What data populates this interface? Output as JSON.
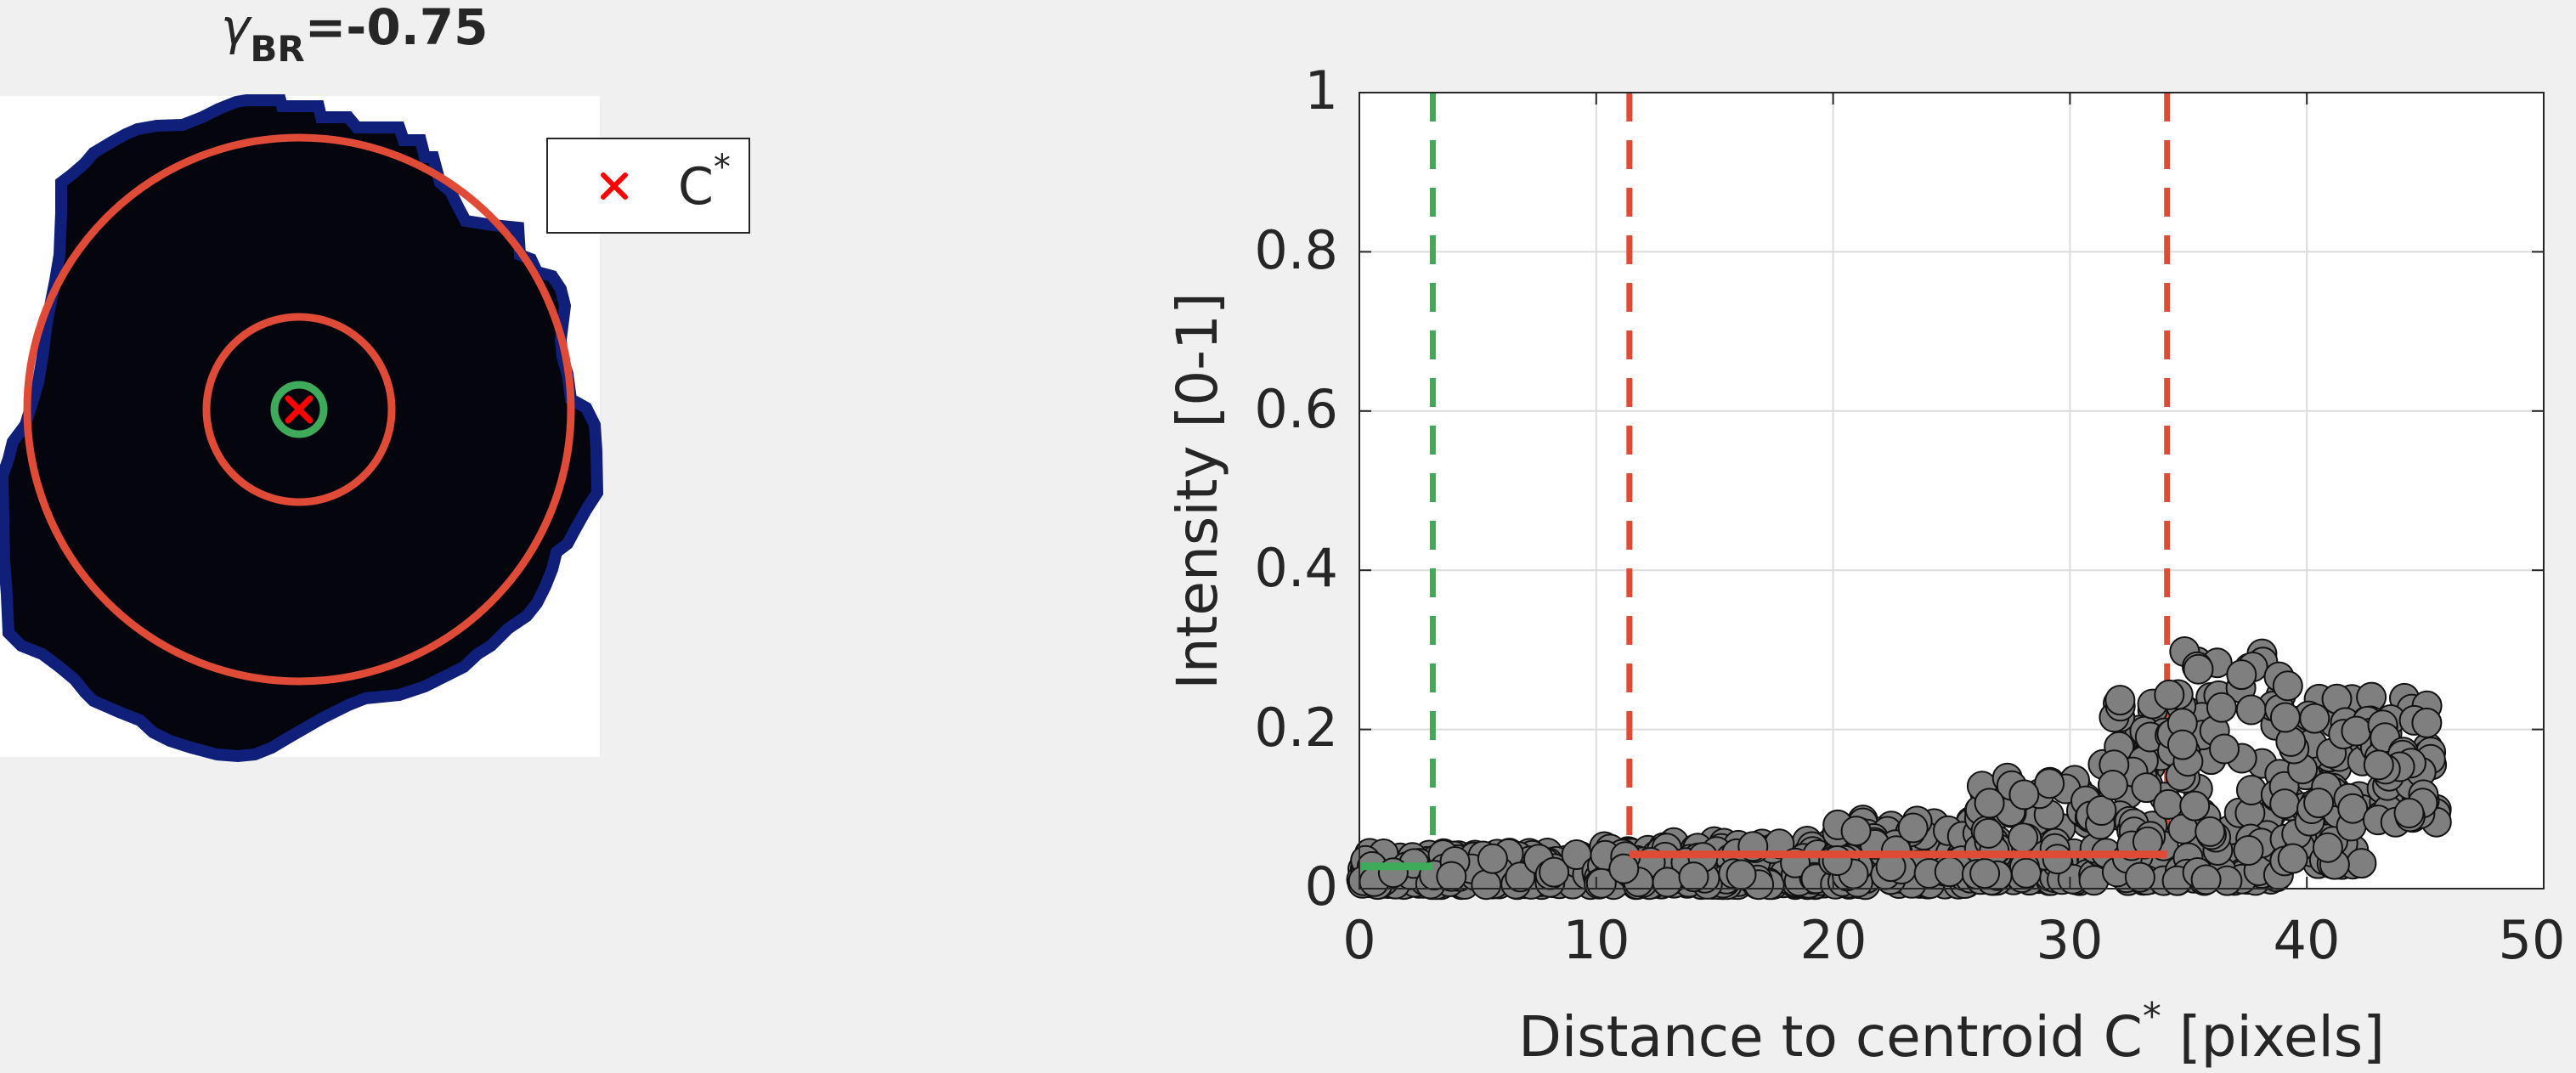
{
  "colors": {
    "background": "#f0f0f0",
    "red": "#e04b38",
    "green": "#3dab5a",
    "marker_red": "#ff0000",
    "point_fill": "#7f7f7f",
    "point_edge": "#111111",
    "cell_dark": "#05050d",
    "cell_edge": "#0f1f7a"
  },
  "left_panel": {
    "title_gamma": "γ",
    "title_sub": "BR",
    "title_value": "=-0.75",
    "legend_label": "C",
    "legend_sup": "*",
    "legend_marker_icon": "red-x-icon"
  },
  "chart_data": {
    "type": "scatter",
    "xlabel": "Distance to centroid C",
    "xlabel_sup": "*",
    "xlabel_suffix": " [pixels]",
    "ylabel": "Intensity [0-1]",
    "xlim": [
      0,
      50
    ],
    "ylim": [
      0,
      1
    ],
    "xticks": [
      0,
      10,
      20,
      30,
      40,
      50
    ],
    "yticks": [
      0,
      0.2,
      0.4,
      0.6,
      0.8,
      1
    ],
    "xtick_labels": [
      "0",
      "10",
      "20",
      "30",
      "40",
      "50"
    ],
    "ytick_labels": [
      "0",
      "0.2",
      "0.4",
      "0.6",
      "0.8",
      "1"
    ],
    "grid": true,
    "vlines": [
      {
        "x": 3.1,
        "color": "green",
        "style": "dashed"
      },
      {
        "x": 11.4,
        "color": "red",
        "style": "dashed"
      },
      {
        "x": 34.1,
        "color": "red",
        "style": "dashed"
      }
    ],
    "hsegments": [
      {
        "x0": 0,
        "x1": 3.1,
        "y": 0.028,
        "color": "green"
      },
      {
        "x0": 11.4,
        "x1": 34.1,
        "y": 0.043,
        "color": "red"
      }
    ],
    "scatter_envelope": [
      {
        "x0": 0,
        "x1": 10,
        "ymin": 0.005,
        "ymax": 0.045
      },
      {
        "x0": 10,
        "x1": 20,
        "ymin": 0.005,
        "ymax": 0.06
      },
      {
        "x0": 20,
        "x1": 26,
        "ymin": 0.005,
        "ymax": 0.09
      },
      {
        "x0": 26,
        "x1": 31,
        "ymin": 0.01,
        "ymax": 0.14
      },
      {
        "x0": 31,
        "x1": 34,
        "ymin": 0.01,
        "ymax": 0.27
      },
      {
        "x0": 34,
        "x1": 39,
        "ymin": 0.01,
        "ymax": 0.3
      },
      {
        "x0": 39,
        "x1": 43,
        "ymin": 0.03,
        "ymax": 0.26
      },
      {
        "x0": 43,
        "x1": 45.5,
        "ymin": 0.08,
        "ymax": 0.24
      }
    ]
  }
}
